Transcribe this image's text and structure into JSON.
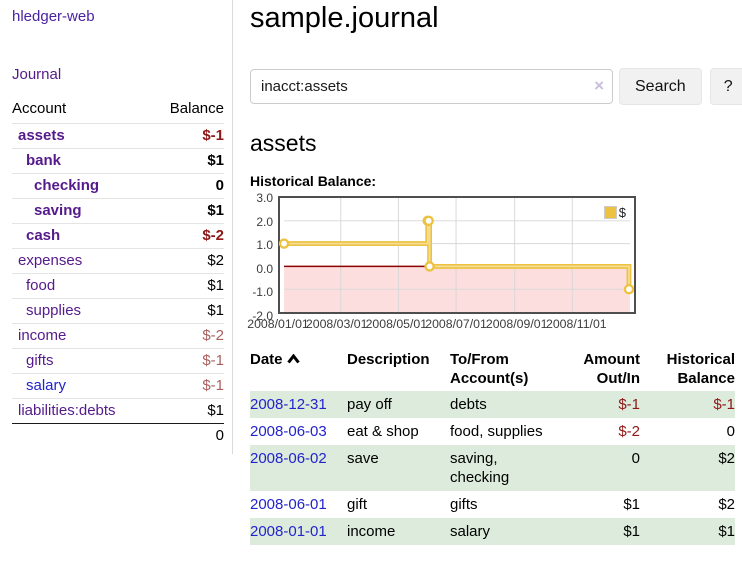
{
  "brand": "hledger-web",
  "nav": {
    "journal": "Journal"
  },
  "sidebar": {
    "headers": {
      "account": "Account",
      "balance": "Balance"
    },
    "rows": [
      {
        "name": "assets",
        "balance": "$-1",
        "depth": 1,
        "in_account": true
      },
      {
        "name": "bank",
        "balance": "$1",
        "depth": 2,
        "in_account": true
      },
      {
        "name": "checking",
        "balance": "0",
        "depth": 3,
        "in_account": true
      },
      {
        "name": "saving",
        "balance": "$1",
        "depth": 3,
        "in_account": true
      },
      {
        "name": "cash",
        "balance": "$-2",
        "depth": 2,
        "in_account": true
      },
      {
        "name": "expenses",
        "balance": "$2",
        "depth": 1,
        "in_account": false
      },
      {
        "name": "food",
        "balance": "$1",
        "depth": 2,
        "in_account": false
      },
      {
        "name": "supplies",
        "balance": "$1",
        "depth": 2,
        "in_account": false
      },
      {
        "name": "income",
        "balance": "$-2",
        "depth": 1,
        "in_account": false
      },
      {
        "name": "gifts",
        "balance": "$-1",
        "depth": 2,
        "in_account": false
      },
      {
        "name": "salary",
        "balance": "$-1",
        "depth": 2,
        "in_account": false
      },
      {
        "name": "liabilities:debts",
        "balance": "$1",
        "depth": 1,
        "in_account": false
      }
    ],
    "total": "0"
  },
  "header": {
    "title": "sample.journal"
  },
  "search": {
    "query": "inacct:assets",
    "clear_glyph": "×",
    "button": "Search",
    "help": "?"
  },
  "account_page": {
    "heading": "assets",
    "chart_label": "Historical Balance:"
  },
  "chart_data": {
    "type": "line",
    "step": true,
    "title": "Historical Balance:",
    "series": [
      {
        "name": "$",
        "color": "#edc240",
        "points": [
          {
            "date": "2008-01-01",
            "value": 1
          },
          {
            "date": "2008-06-01",
            "value": 2
          },
          {
            "date": "2008-06-02",
            "value": 2
          },
          {
            "date": "2008-06-03",
            "value": 0
          },
          {
            "date": "2008-12-31",
            "value": -1
          }
        ]
      }
    ],
    "xlim": [
      "2008-01-01",
      "2009-01-01"
    ],
    "ylim": [
      -2,
      3
    ],
    "x_ticks": [
      "2008/01/01",
      "2008/03/01",
      "2008/05/01",
      "2008/07/01",
      "2008/09/01",
      "2008/11/01"
    ],
    "y_ticks": [
      "3.0",
      "2.0",
      "1.0",
      "0.0",
      "-1.0",
      "-2.0"
    ],
    "legend_position": "top-right",
    "grid": true,
    "negative_region_color": "#fbdedd",
    "zero_line_color": "#8b0000",
    "grid_color": "#d8d8d8"
  },
  "register": {
    "columns": [
      "Date",
      "Description",
      "To/From Account(s)",
      "Amount Out/In",
      "Historical Balance"
    ],
    "rows": [
      {
        "date": "2008-12-31",
        "description": "pay off",
        "accounts": "debts",
        "amount": "$-1",
        "balance": "$-1"
      },
      {
        "date": "2008-06-03",
        "description": "eat & shop",
        "accounts": "food, supplies",
        "amount": "$-2",
        "balance": "0"
      },
      {
        "date": "2008-06-02",
        "description": "save",
        "accounts": "saving, checking",
        "amount": "0",
        "balance": "$2"
      },
      {
        "date": "2008-06-01",
        "description": "gift",
        "accounts": "gifts",
        "amount": "$1",
        "balance": "$2"
      },
      {
        "date": "2008-01-01",
        "description": "income",
        "accounts": "salary",
        "amount": "$1",
        "balance": "$1"
      }
    ]
  },
  "colors": {
    "link_purple": "#551a8b",
    "link_blue": "#2323cc",
    "negative_strong": "#8f1717",
    "negative_muted": "#ab5f5f",
    "row_stripe_green": "#dcebdb",
    "chart_series_yellow": "#edc240"
  }
}
